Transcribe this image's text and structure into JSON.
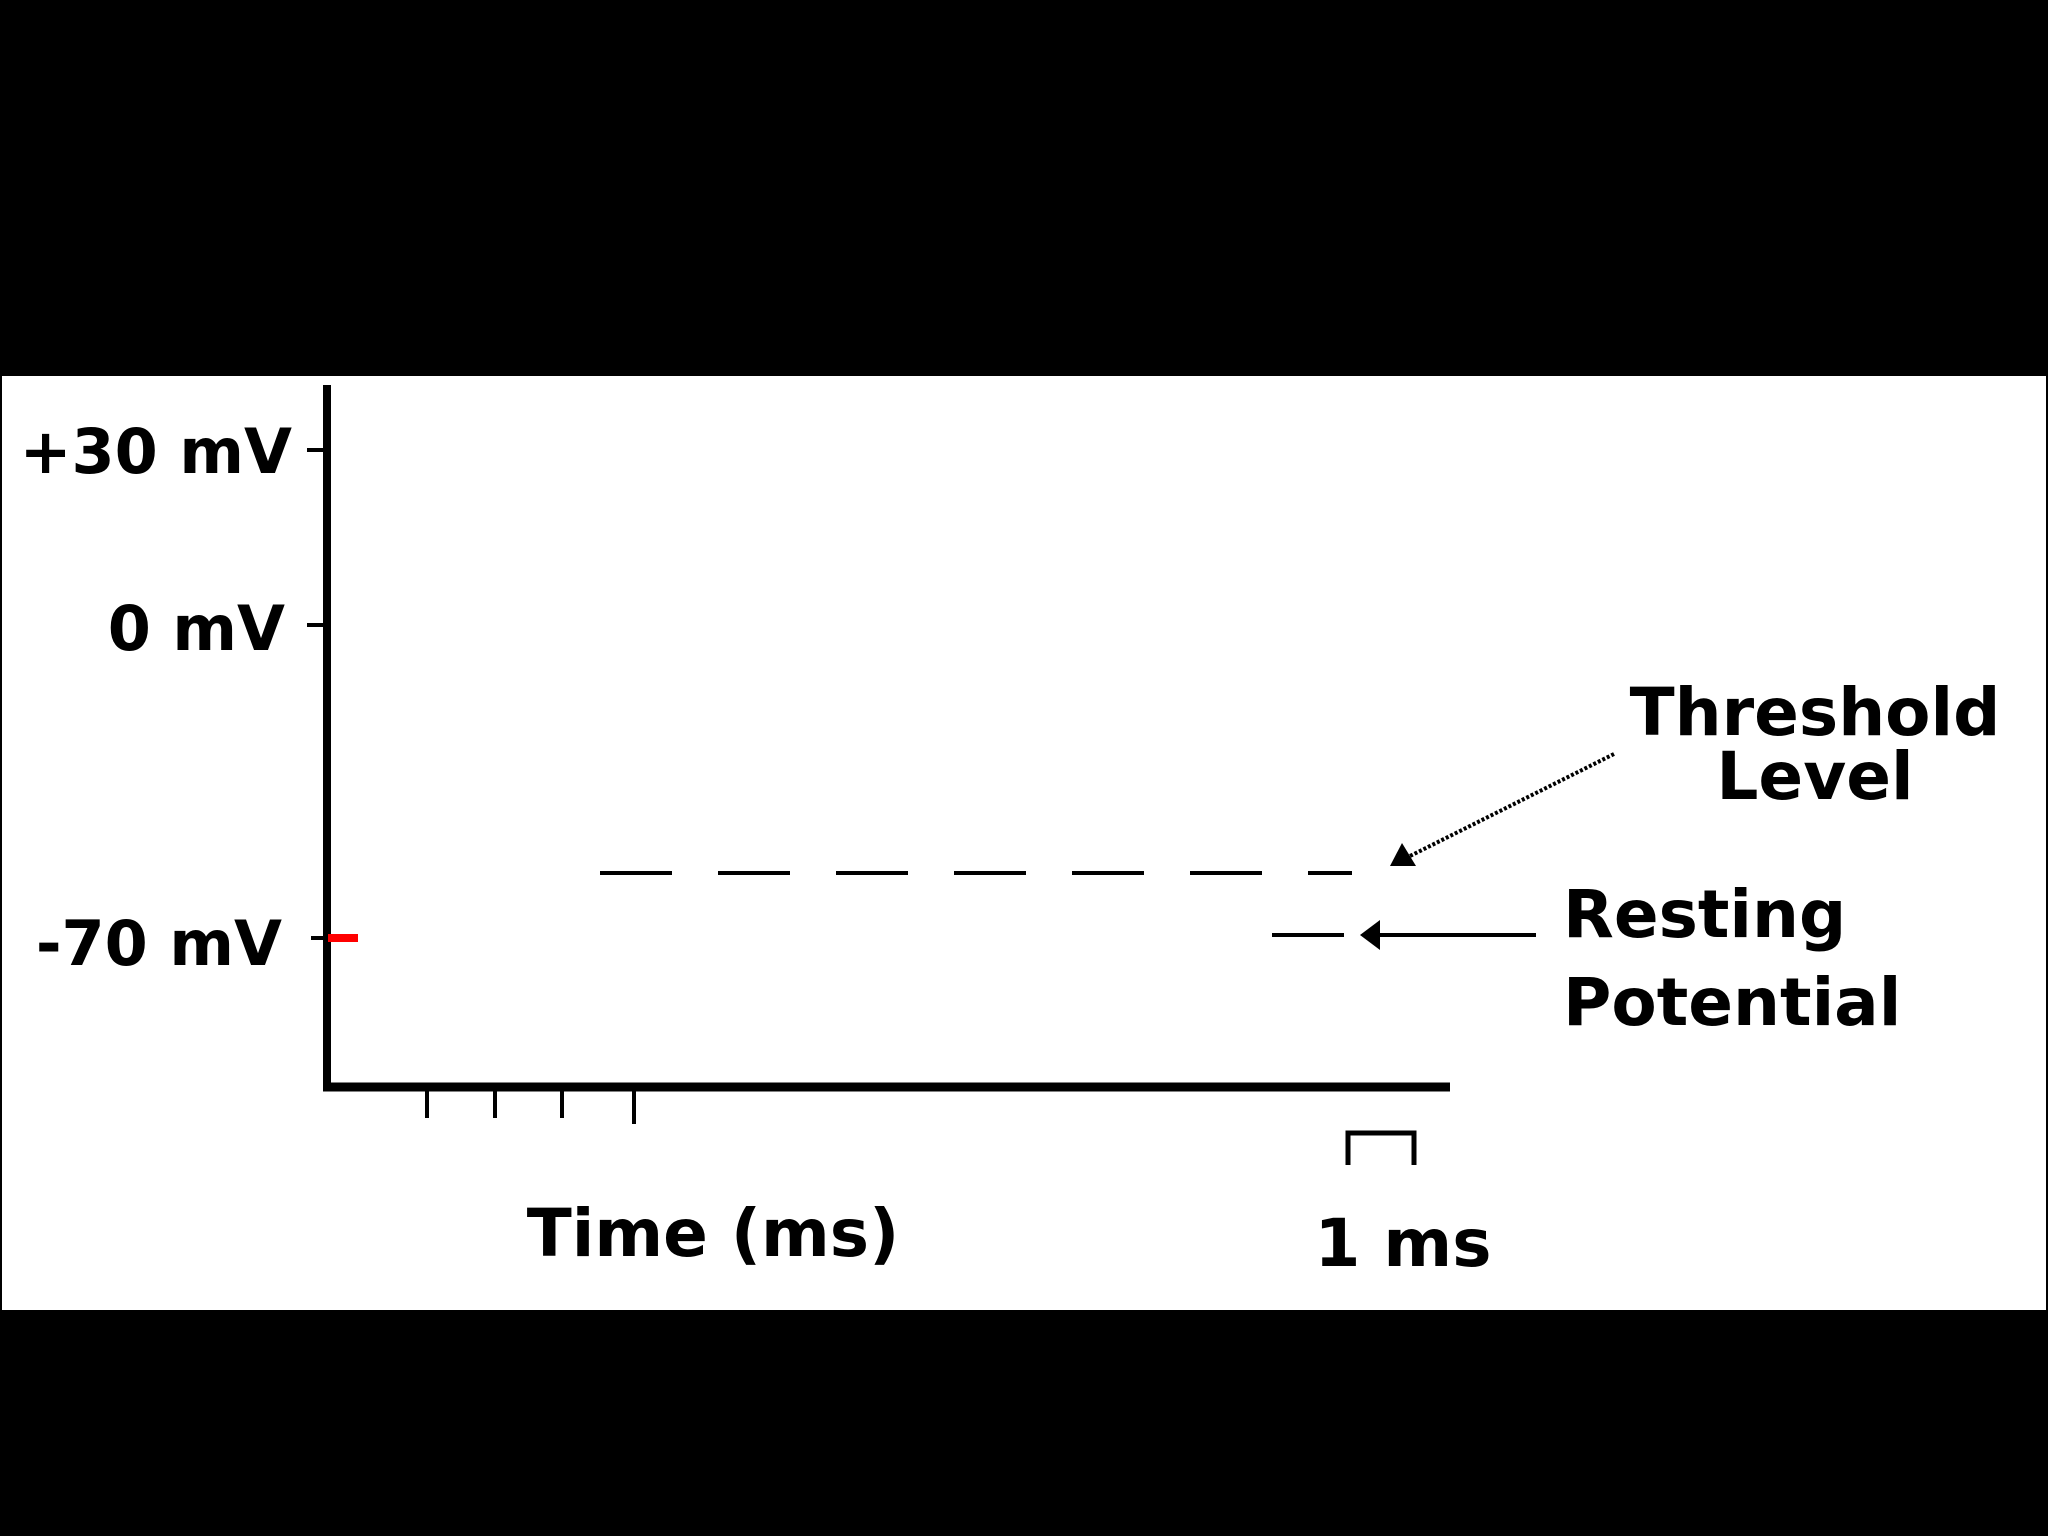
{
  "colors": {
    "background": "#000000",
    "panel": "#ffffff",
    "ink": "#000000",
    "resting_marker": "#ff0000"
  },
  "y_axis": {
    "ticks": [
      {
        "label": "+30 mV",
        "value": 30
      },
      {
        "label": "0 mV",
        "value": 0
      },
      {
        "label": "-70 mV",
        "value": -70
      }
    ]
  },
  "x_axis": {
    "label": "Time (ms)",
    "scale_bar_label": "1 ms"
  },
  "annotations": {
    "threshold": {
      "line1": "Threshold",
      "line2": "Level"
    },
    "resting": {
      "line1": "Resting",
      "line2": "Potential"
    }
  }
}
